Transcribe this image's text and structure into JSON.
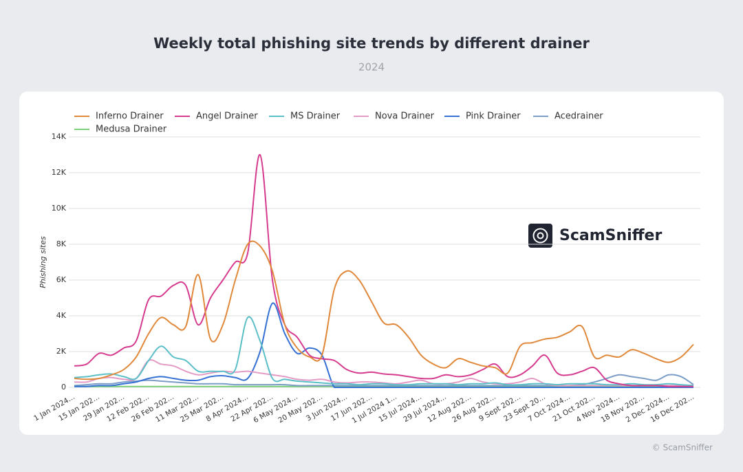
{
  "chart_data": {
    "type": "line",
    "title": "Weekly total phishing site trends by different drainer",
    "subtitle": "2024",
    "y_label": "Phishing sites",
    "watermark": "ScamSniffer",
    "footer": "© ScamSniffer",
    "categories": [
      "1 Jan 2024…",
      null,
      "15 Jan 202…",
      null,
      "29 Jan 202…",
      null,
      "12 Feb 202…",
      null,
      "26 Feb 202…",
      null,
      "11 Mar 202…",
      null,
      "25 Mar 202…",
      null,
      "8 Apr 2024…",
      null,
      "22 Apr 202…",
      null,
      "6 May 2024…",
      null,
      "20 May 202…",
      null,
      "3 Jun 2024…",
      null,
      "17 Jun 202…",
      null,
      "1 Jul 2024 1…",
      null,
      "15 Jul 2024…",
      null,
      "29 Jul 2024…",
      null,
      "12 Aug 202…",
      null,
      "26 Aug 202…",
      null,
      "9 Sept 202…",
      null,
      "23 Sept 20…",
      null,
      "7 Oct 2024…",
      null,
      "21 Oct 202…",
      null,
      "4 Nov 2024…",
      null,
      "18 Nov 202…",
      null,
      "2 Dec 2024…",
      null,
      "16 Dec 202…"
    ],
    "series": [
      {
        "name": "Inferno Drainer",
        "color": "#e0883a",
        "values": [
          500,
          450,
          500,
          700,
          1000,
          1700,
          3000,
          3900,
          3500,
          3400,
          6300,
          2700,
          3500,
          6000,
          8000,
          7900,
          6500,
          3500,
          2200,
          1700,
          1800,
          5500,
          6500,
          6000,
          4800,
          3600,
          3500,
          2800,
          1800,
          1300,
          1100,
          1600,
          1400,
          1200,
          1100,
          800,
          2300,
          2500,
          2700,
          2800,
          3100,
          3400,
          1700,
          1800,
          1700,
          2100,
          1900,
          1600,
          1400,
          1700,
          2400
        ]
      },
      {
        "name": "Angel Drainer",
        "color": "#d63a8e",
        "values": [
          1200,
          1300,
          1900,
          1800,
          2200,
          2600,
          4900,
          5100,
          5700,
          5700,
          3500,
          5000,
          6000,
          7000,
          7500,
          13000,
          6000,
          3500,
          2800,
          1800,
          1600,
          1500,
          1000,
          800,
          850,
          750,
          700,
          600,
          500,
          500,
          700,
          600,
          700,
          1000,
          1300,
          600,
          700,
          1200,
          1800,
          800,
          700,
          900,
          1100,
          400,
          200,
          100,
          100,
          100,
          50,
          50,
          50
        ]
      },
      {
        "name": "MS Drainer",
        "color": "#5bbfc8",
        "values": [
          550,
          600,
          700,
          750,
          600,
          500,
          1500,
          2300,
          1700,
          1500,
          900,
          900,
          900,
          1000,
          3900,
          2600,
          500,
          450,
          350,
          300,
          250,
          200,
          200,
          150,
          200,
          200,
          150,
          150,
          200,
          200,
          200,
          150,
          200,
          200,
          250,
          150,
          150,
          200,
          200,
          150,
          200,
          200,
          200,
          150,
          150,
          200,
          150,
          150,
          200,
          150,
          100
        ]
      },
      {
        "name": "Nova Drainer",
        "color": "#e39ac4",
        "values": [
          300,
          300,
          500,
          550,
          450,
          500,
          1500,
          1300,
          1200,
          900,
          700,
          800,
          900,
          850,
          900,
          800,
          700,
          600,
          450,
          400,
          450,
          300,
          250,
          300,
          300,
          250,
          200,
          300,
          400,
          200,
          200,
          300,
          500,
          300,
          200,
          200,
          300,
          500,
          200,
          100,
          100,
          100,
          100,
          100,
          100,
          100,
          100,
          100,
          100,
          100,
          100
        ]
      },
      {
        "name": "Pink Drainer",
        "color": "#3570d4",
        "values": [
          50,
          50,
          100,
          100,
          200,
          300,
          500,
          600,
          500,
          400,
          400,
          600,
          650,
          550,
          500,
          2000,
          4700,
          3000,
          1900,
          2200,
          1800,
          0,
          0,
          0,
          0,
          0,
          0,
          0,
          0,
          0,
          0,
          0,
          0,
          0,
          0,
          0,
          0,
          0,
          0,
          0,
          0,
          0,
          0,
          0,
          0,
          0,
          0,
          0,
          0,
          0,
          0
        ]
      },
      {
        "name": "Acedrainer",
        "color": "#7a9cc6",
        "values": [
          100,
          150,
          200,
          200,
          300,
          350,
          400,
          350,
          300,
          250,
          200,
          200,
          200,
          150,
          150,
          150,
          150,
          150,
          100,
          100,
          100,
          100,
          100,
          100,
          100,
          100,
          100,
          100,
          100,
          100,
          100,
          100,
          100,
          100,
          100,
          100,
          100,
          100,
          100,
          100,
          100,
          150,
          300,
          500,
          700,
          600,
          500,
          400,
          700,
          600,
          150
        ]
      },
      {
        "name": "Medusa Drainer",
        "color": "#7ccf7a",
        "values": [
          50,
          50,
          50,
          50,
          50,
          50,
          50,
          50,
          50,
          50,
          50,
          50,
          50,
          50,
          50,
          50,
          50,
          50,
          50,
          50,
          50,
          50,
          50,
          50,
          50,
          50,
          50,
          50,
          50,
          50,
          50,
          50,
          50,
          50,
          50,
          50,
          50,
          50,
          50,
          50,
          50,
          50,
          50,
          50,
          50,
          50,
          50,
          50,
          50,
          50,
          50
        ]
      }
    ],
    "ylim": [
      0,
      14000
    ],
    "yticks": [
      0,
      {
        "value": 2000,
        "label": "2K"
      },
      {
        "value": 4000,
        "label": "4K"
      },
      {
        "value": 6000,
        "label": "6K"
      },
      {
        "value": 8000,
        "label": "8K"
      },
      {
        "value": 10000,
        "label": "10K"
      },
      {
        "value": 12000,
        "label": "12K"
      },
      {
        "value": 14000,
        "label": "14K"
      }
    ],
    "grid": true
  }
}
